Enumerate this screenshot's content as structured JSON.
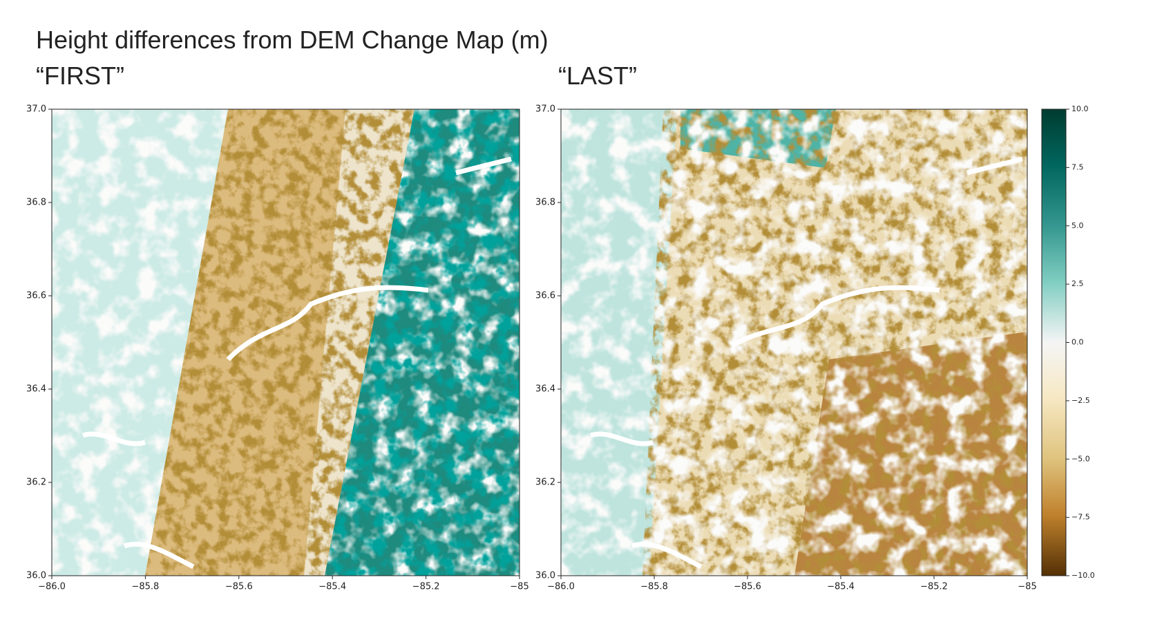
{
  "title": "Height differences from DEM Change Map (m)",
  "panels": [
    {
      "label": "“FIRST”",
      "xlim": [
        -86,
        -85
      ],
      "ylim": [
        36,
        37
      ],
      "yticks": [
        {
          "value": 36,
          "label": "36.0"
        },
        {
          "value": 36.2,
          "label": "36.2"
        },
        {
          "value": 36.4,
          "label": "36.4"
        },
        {
          "value": 36.6,
          "label": "36.6"
        },
        {
          "value": 36.8,
          "label": "36.8"
        },
        {
          "value": 37,
          "label": "37.0"
        }
      ],
      "xticks": [
        {
          "value": -86,
          "label": "−86.0"
        },
        {
          "value": -85.8,
          "label": "−85.8"
        },
        {
          "value": -85.6,
          "label": "−85.6"
        },
        {
          "value": -85.4,
          "label": "−85.4"
        },
        {
          "value": -85.2,
          "label": "−85.2"
        },
        {
          "value": -85,
          "label": "−85"
        }
      ]
    },
    {
      "label": "“LAST”",
      "xlim": [
        -86,
        -85
      ],
      "ylim": [
        36,
        37
      ],
      "yticks": [
        {
          "value": 36,
          "label": "36.0"
        },
        {
          "value": 36.2,
          "label": "36.2"
        },
        {
          "value": 36.4,
          "label": "36.4"
        },
        {
          "value": 36.6,
          "label": "36.6"
        },
        {
          "value": 36.8,
          "label": "36.8"
        },
        {
          "value": 37,
          "label": "37.0"
        }
      ],
      "xticks": [
        {
          "value": -86,
          "label": "−86.0"
        },
        {
          "value": -85.8,
          "label": "−85.8"
        },
        {
          "value": -85.6,
          "label": "−85.6"
        },
        {
          "value": -85.4,
          "label": "−85.4"
        },
        {
          "value": -85.2,
          "label": "−85.2"
        },
        {
          "value": -85,
          "label": "−85"
        }
      ]
    }
  ],
  "colorbar": {
    "lim": [
      -10,
      10
    ],
    "ticks": [
      {
        "value": 10,
        "label": "10.0"
      },
      {
        "value": 7.5,
        "label": "7.5"
      },
      {
        "value": 5,
        "label": "5.0"
      },
      {
        "value": 2.5,
        "label": "2.5"
      },
      {
        "value": 0,
        "label": "0.0"
      },
      {
        "value": -2.5,
        "label": "−2.5"
      },
      {
        "value": -5,
        "label": "−5.0"
      },
      {
        "value": -7.5,
        "label": "−7.5"
      },
      {
        "value": -10,
        "label": "−10.0"
      }
    ]
  }
}
